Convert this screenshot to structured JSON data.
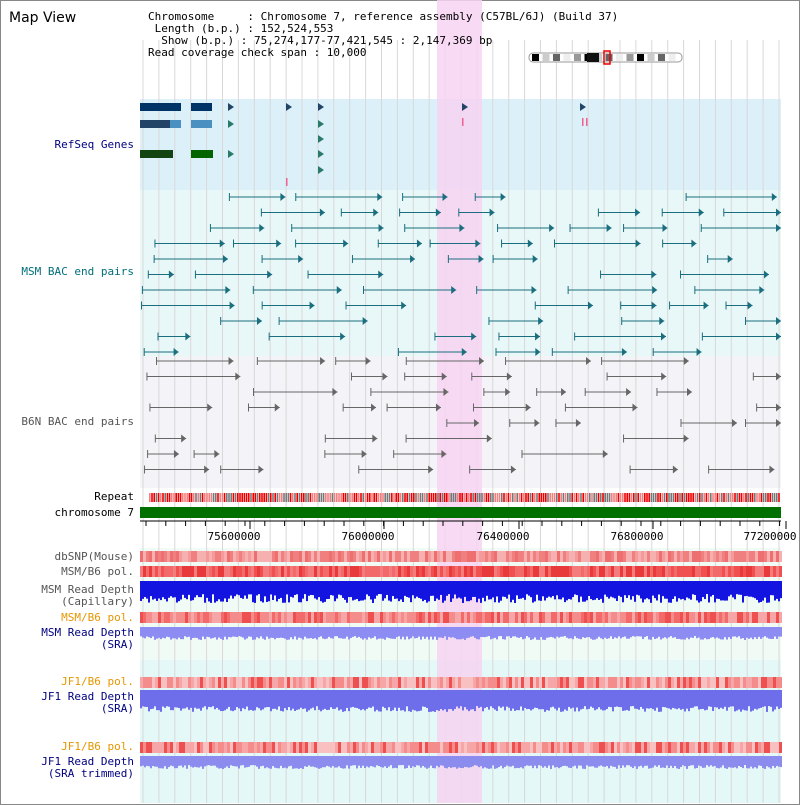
{
  "title": "Map View",
  "header": {
    "chromosome_line": "Chromosome     : Chromosome 7, reference assembly (C57BL/6J) (Build 37)",
    "length_line": " Length (b.p.) : 152,524,553",
    "show_line": "  Show (b.p.) : 75,274,177-77,421,545 : 2,147,369 bp",
    "coverage_line": "Read coverage check span : 10,000"
  },
  "tracks": {
    "refseq": "RefSeq Genes",
    "msm_bac": "MSM BAC end pairs",
    "b6n_bac": "B6N BAC end pairs",
    "repeat": "Repeat",
    "chromosome": "chromosome 7",
    "dbsnp": "dbSNP(Mouse)",
    "msm_b6_pol": "MSM/B6 pol.",
    "msm_read_depth_cap": "MSM Read Depth\n(Capillary)",
    "msm_b6_pol_2": "MSM/B6 pol.",
    "msm_read_depth_sra": "MSM Read Depth\n(SRA)",
    "jf1_b6_pol": "JF1/B6 pol.",
    "jf1_read_depth_sra": "JF1 Read Depth\n(SRA)",
    "jf1_b6_pol_2": "JF1/B6 pol.",
    "jf1_read_depth_trim": "JF1 Read Depth\n(SRA trimmed)"
  },
  "axis": {
    "ticks": [
      "75600000",
      "76000000",
      "76400000",
      "76800000",
      "77200000"
    ]
  },
  "colors": {
    "refseq_bg": "#dcf0fa",
    "msm_bac_bg": "#e8f8f8",
    "b6n_bac_bg": "#f4f4f8",
    "highlight": "#f7d4f2",
    "chromosome_bar": "#007000",
    "label_blue": "#000080",
    "label_teal": "#006e78",
    "label_orange": "#e69600",
    "label_gray": "#555555"
  }
}
